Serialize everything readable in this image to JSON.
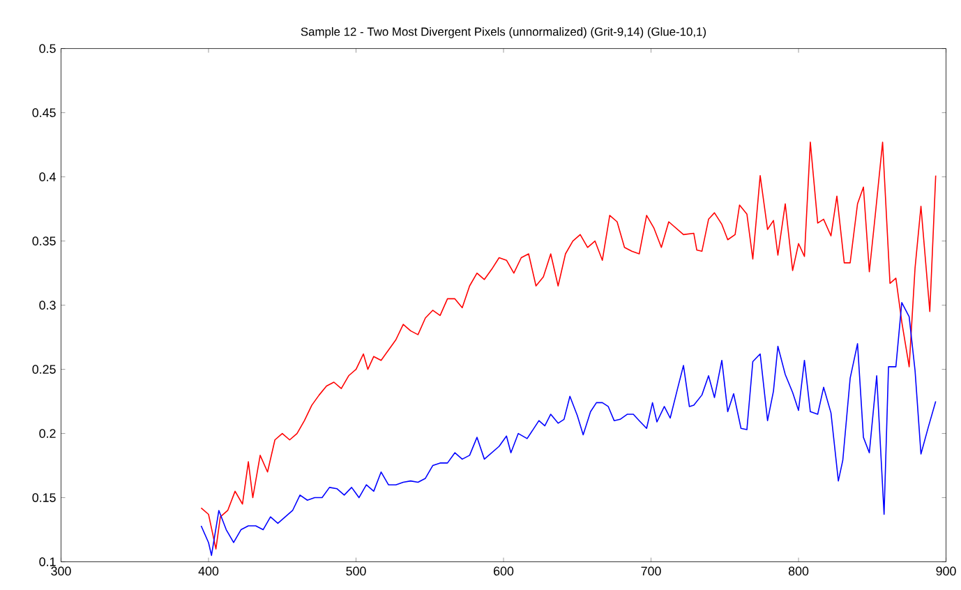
{
  "chart_data": {
    "type": "line",
    "title": "Sample 12 - Two Most Divergent Pixels (unnormalized) (Grit-9,14) (Glue-10,1)",
    "xlim": [
      300,
      900
    ],
    "ylim": [
      0.1,
      0.5
    ],
    "xticks": [
      300,
      400,
      500,
      600,
      700,
      800,
      900
    ],
    "yticks": [
      0.1,
      0.15,
      0.2,
      0.25,
      0.3,
      0.35,
      0.4,
      0.45,
      0.5
    ],
    "grid": false,
    "marker": "none",
    "line_style": "solid",
    "series": [
      {
        "color": "#ff0000",
        "x": [
          395,
          400,
          405,
          408,
          413,
          418,
          423,
          427,
          430,
          435,
          440,
          445,
          450,
          455,
          460,
          465,
          470,
          475,
          480,
          485,
          490,
          495,
          500,
          505,
          508,
          512,
          517,
          522,
          527,
          532,
          537,
          542,
          547,
          552,
          557,
          562,
          567,
          572,
          577,
          582,
          587,
          592,
          597,
          602,
          607,
          612,
          617,
          622,
          627,
          632,
          637,
          642,
          647,
          652,
          657,
          662,
          667,
          672,
          677,
          682,
          687,
          692,
          697,
          702,
          707,
          712,
          717,
          722,
          729,
          731,
          734.5,
          739,
          743,
          748,
          752,
          757,
          760,
          765,
          769,
          774,
          779,
          783,
          786,
          791,
          796,
          800,
          804,
          808,
          813,
          817,
          822,
          826,
          831,
          835,
          840,
          844,
          848,
          852,
          857,
          862,
          866,
          870,
          875,
          879,
          883,
          889,
          893
        ],
        "values": [
          0.142,
          0.137,
          0.11,
          0.135,
          0.14,
          0.155,
          0.145,
          0.178,
          0.15,
          0.183,
          0.17,
          0.195,
          0.2,
          0.195,
          0.2,
          0.21,
          0.222,
          0.23,
          0.237,
          0.24,
          0.235,
          0.245,
          0.25,
          0.262,
          0.25,
          0.26,
          0.257,
          0.265,
          0.273,
          0.285,
          0.28,
          0.277,
          0.29,
          0.296,
          0.292,
          0.305,
          0.305,
          0.298,
          0.315,
          0.325,
          0.32,
          0.328,
          0.337,
          0.335,
          0.325,
          0.337,
          0.34,
          0.315,
          0.322,
          0.34,
          0.315,
          0.34,
          0.35,
          0.355,
          0.345,
          0.35,
          0.335,
          0.37,
          0.365,
          0.345,
          0.342,
          0.34,
          0.37,
          0.36,
          0.345,
          0.365,
          0.36,
          0.355,
          0.356,
          0.343,
          0.342,
          0.367,
          0.372,
          0.363,
          0.351,
          0.355,
          0.378,
          0.371,
          0.336,
          0.401,
          0.359,
          0.366,
          0.339,
          0.379,
          0.327,
          0.348,
          0.338,
          0.427,
          0.364,
          0.367,
          0.354,
          0.385,
          0.333,
          0.333,
          0.379,
          0.392,
          0.326,
          0.37,
          0.427,
          0.317,
          0.321,
          0.287,
          0.252,
          0.329,
          0.377,
          0.295,
          0.401
        ]
      },
      {
        "color": "#0000ff",
        "x": [
          395,
          400,
          402,
          407,
          412,
          417,
          422,
          427,
          432,
          437,
          442,
          447,
          452,
          457,
          462,
          467,
          472,
          477,
          482,
          487,
          492,
          497,
          502,
          507,
          512,
          517,
          522,
          527,
          532,
          537,
          542,
          547,
          552,
          557,
          562,
          567,
          572,
          577,
          582,
          587,
          592,
          597,
          602,
          605,
          610,
          616,
          624,
          628,
          632,
          637,
          641,
          645,
          650,
          654,
          659,
          663,
          667,
          671,
          675,
          679,
          684,
          688,
          692,
          697,
          701,
          704,
          709,
          713,
          718,
          722,
          726,
          729,
          734.5,
          739,
          743,
          748,
          752,
          756,
          761,
          765,
          769,
          774,
          779,
          783,
          786,
          791,
          796,
          800,
          804,
          808,
          813,
          817,
          822,
          827,
          830,
          835,
          840,
          844,
          848,
          853,
          858,
          861,
          866,
          870,
          875,
          879,
          883,
          888,
          893
        ],
        "values": [
          0.128,
          0.115,
          0.105,
          0.14,
          0.125,
          0.115,
          0.125,
          0.128,
          0.128,
          0.125,
          0.135,
          0.13,
          0.135,
          0.14,
          0.152,
          0.148,
          0.15,
          0.15,
          0.158,
          0.157,
          0.152,
          0.158,
          0.15,
          0.16,
          0.155,
          0.17,
          0.16,
          0.16,
          0.162,
          0.163,
          0.162,
          0.165,
          0.175,
          0.177,
          0.177,
          0.185,
          0.18,
          0.183,
          0.197,
          0.18,
          0.185,
          0.19,
          0.198,
          0.185,
          0.2,
          0.196,
          0.21,
          0.206,
          0.215,
          0.208,
          0.211,
          0.229,
          0.214,
          0.199,
          0.217,
          0.224,
          0.224,
          0.221,
          0.21,
          0.211,
          0.215,
          0.215,
          0.21,
          0.204,
          0.224,
          0.209,
          0.221,
          0.212,
          0.235,
          0.253,
          0.221,
          0.222,
          0.23,
          0.245,
          0.228,
          0.257,
          0.217,
          0.231,
          0.204,
          0.203,
          0.256,
          0.262,
          0.21,
          0.233,
          0.268,
          0.246,
          0.232,
          0.218,
          0.257,
          0.217,
          0.215,
          0.236,
          0.216,
          0.163,
          0.179,
          0.243,
          0.27,
          0.197,
          0.185,
          0.245,
          0.137,
          0.252,
          0.252,
          0.302,
          0.291,
          0.249,
          0.184,
          0.205,
          0.225
        ]
      }
    ]
  }
}
